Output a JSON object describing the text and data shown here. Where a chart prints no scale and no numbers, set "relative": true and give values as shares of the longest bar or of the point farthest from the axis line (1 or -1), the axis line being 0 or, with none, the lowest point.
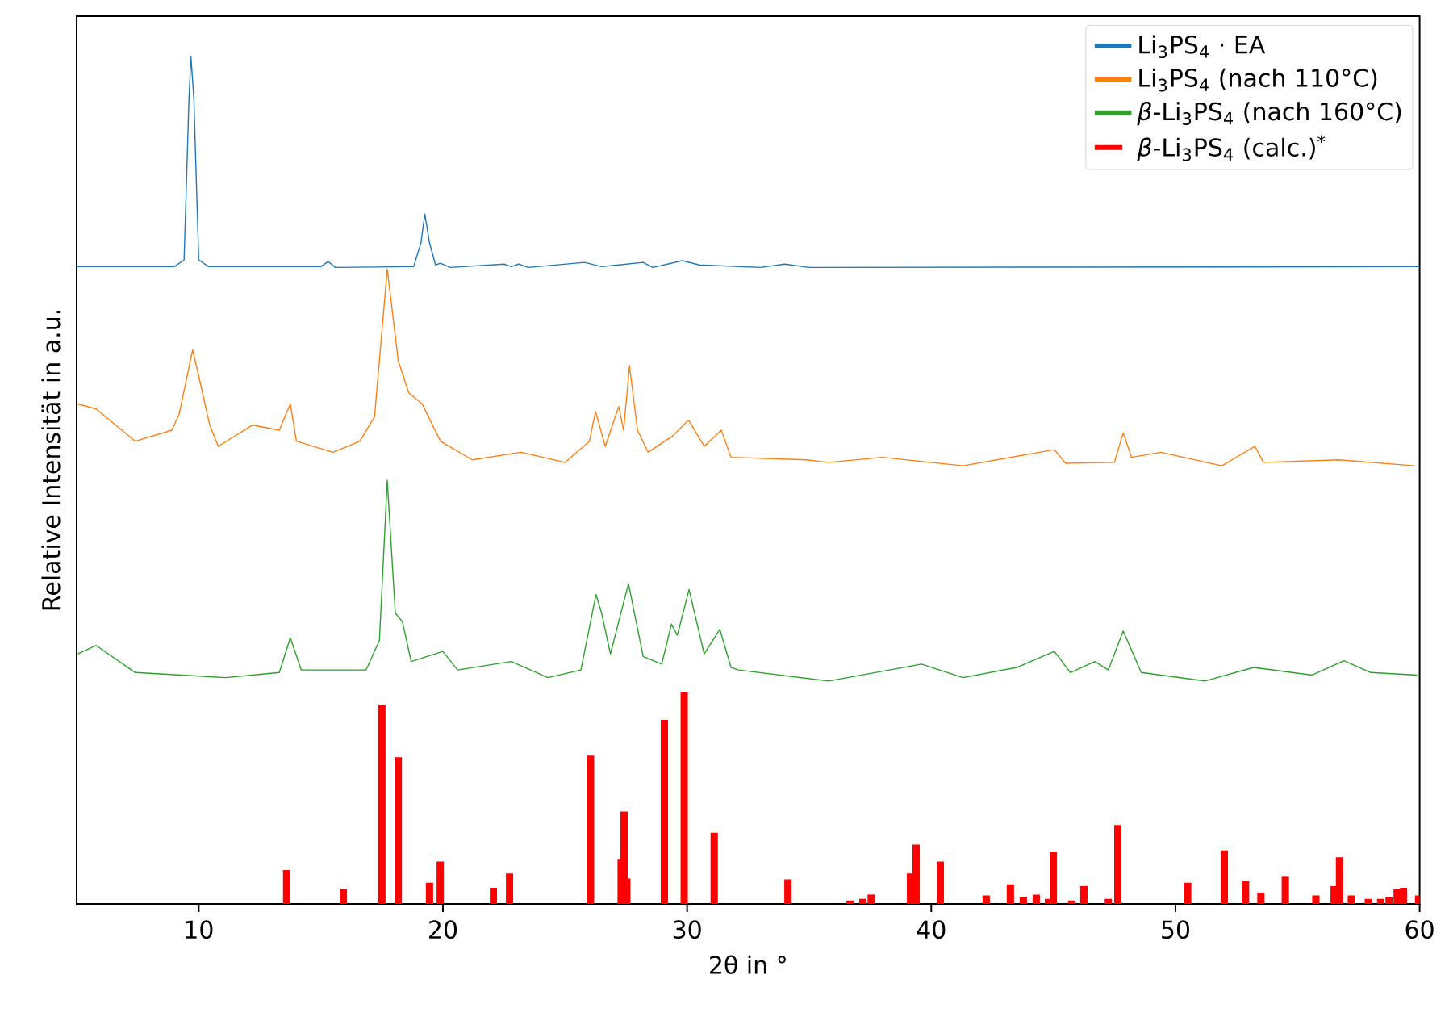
{
  "chart_data": {
    "type": "line",
    "relative": true,
    "xlabel": "2θ in °",
    "ylabel": "Relative Intensität in a.u.",
    "xlim": [
      5,
      60
    ],
    "xticks": [
      10,
      20,
      30,
      40,
      50,
      60
    ],
    "legend": "top right",
    "series": [
      {
        "name": "Li$_{3}$PS$_{4}$ · EA",
        "color": "#1f77b4",
        "x": [
          5,
          9.0,
          9.4,
          9.6,
          9.68,
          9.8,
          10.0,
          10.4,
          15.0,
          15.3,
          15.6,
          18.8,
          19.1,
          19.26,
          19.45,
          19.7,
          19.9,
          20.3,
          22.5,
          22.8,
          23.1,
          23.5,
          25.8,
          26.5,
          28.2,
          28.6,
          29.8,
          30.5,
          33.0,
          34.0,
          35.0,
          60
        ],
        "values": [
          0.752,
          0.752,
          0.76,
          0.95,
          1.0,
          0.95,
          0.76,
          0.752,
          0.752,
          0.758,
          0.751,
          0.752,
          0.78,
          0.814,
          0.78,
          0.754,
          0.756,
          0.751,
          0.755,
          0.752,
          0.755,
          0.751,
          0.757,
          0.752,
          0.757,
          0.751,
          0.759,
          0.754,
          0.751,
          0.755,
          0.751,
          0.752
        ]
      },
      {
        "name": "Li$_{3}$PS$_{4}$ (nach 110°C)",
        "color": "#ff7f0e",
        "x": [
          5.05,
          5.8,
          7.4,
          8.9,
          9.2,
          9.75,
          10.1,
          10.45,
          10.8,
          12.2,
          13.3,
          13.75,
          14.0,
          15.5,
          16.6,
          17.2,
          17.72,
          18.17,
          18.6,
          19.15,
          19.9,
          21.2,
          23.2,
          25.0,
          26.0,
          26.25,
          26.65,
          27.2,
          27.4,
          27.64,
          27.97,
          28.4,
          29.4,
          30.06,
          30.7,
          31.4,
          31.8,
          34.9,
          35.8,
          38.0,
          41.3,
          45.04,
          45.5,
          47.5,
          47.86,
          48.2,
          49.4,
          51.9,
          53.26,
          53.6,
          56.7,
          59.8
        ],
        "values": [
          0.59,
          0.584,
          0.546,
          0.559,
          0.578,
          0.654,
          0.61,
          0.565,
          0.54,
          0.565,
          0.559,
          0.59,
          0.546,
          0.533,
          0.546,
          0.575,
          0.749,
          0.641,
          0.603,
          0.59,
          0.546,
          0.524,
          0.533,
          0.521,
          0.546,
          0.581,
          0.54,
          0.587,
          0.559,
          0.635,
          0.559,
          0.533,
          0.552,
          0.571,
          0.54,
          0.559,
          0.527,
          0.524,
          0.521,
          0.527,
          0.517,
          0.536,
          0.52,
          0.521,
          0.556,
          0.527,
          0.533,
          0.517,
          0.54,
          0.521,
          0.524,
          0.517
        ]
      },
      {
        "name": "*β*-Li$_{3}$PS$_{4}$ (nach 160°C)",
        "color": "#2ca02c",
        "x": [
          5.05,
          5.8,
          7.4,
          11.1,
          13.3,
          13.75,
          14.2,
          16.85,
          17.4,
          17.72,
          18.05,
          18.34,
          18.7,
          20.0,
          20.6,
          22.8,
          24.3,
          25.65,
          26.27,
          26.5,
          26.86,
          27.6,
          28.2,
          28.96,
          29.36,
          29.6,
          30.08,
          30.7,
          31.34,
          31.8,
          32.1,
          35.8,
          39.6,
          41.3,
          43.5,
          45.04,
          45.7,
          46.7,
          47.25,
          47.86,
          48.6,
          51.2,
          53.2,
          55.6,
          56.9,
          58.0,
          59.9
        ],
        "values": [
          0.295,
          0.305,
          0.273,
          0.267,
          0.273,
          0.314,
          0.276,
          0.276,
          0.311,
          0.5,
          0.343,
          0.333,
          0.286,
          0.298,
          0.276,
          0.286,
          0.267,
          0.276,
          0.365,
          0.343,
          0.295,
          0.378,
          0.292,
          0.283,
          0.33,
          0.317,
          0.371,
          0.295,
          0.324,
          0.279,
          0.276,
          0.263,
          0.283,
          0.267,
          0.279,
          0.298,
          0.273,
          0.286,
          0.276,
          0.322,
          0.273,
          0.263,
          0.279,
          0.27,
          0.287,
          0.273,
          0.27
        ]
      },
      {
        "name": "*β*-Li$_{3}$PS$_{4}$ (calc.)$^{*}$",
        "type": "bar",
        "color": "#ff0000",
        "x": [
          13.6,
          15.92,
          17.5,
          18.17,
          19.45,
          19.89,
          22.07,
          22.73,
          26.05,
          27.3,
          27.42,
          27.53,
          29.07,
          29.88,
          31.11,
          34.13,
          36.67,
          37.2,
          37.54,
          39.15,
          39.38,
          40.37,
          42.25,
          43.24,
          43.77,
          44.3,
          44.8,
          45.0,
          45.75,
          46.25,
          47.25,
          47.64,
          50.5,
          52.0,
          52.87,
          53.5,
          54.5,
          55.75,
          56.5,
          56.72,
          57.2,
          57.9,
          58.4,
          58.75,
          59.08,
          59.35,
          59.96
        ],
        "values": [
          0.04,
          0.017,
          0.235,
          0.173,
          0.025,
          0.05,
          0.019,
          0.036,
          0.175,
          0.053,
          0.109,
          0.03,
          0.217,
          0.25,
          0.084,
          0.029,
          0.004,
          0.006,
          0.011,
          0.036,
          0.07,
          0.05,
          0.01,
          0.023,
          0.008,
          0.011,
          0.006,
          0.061,
          0.004,
          0.021,
          0.006,
          0.093,
          0.025,
          0.063,
          0.027,
          0.013,
          0.032,
          0.01,
          0.021,
          0.055,
          0.01,
          0.006,
          0.006,
          0.008,
          0.017,
          0.019,
          0.01
        ]
      }
    ]
  }
}
